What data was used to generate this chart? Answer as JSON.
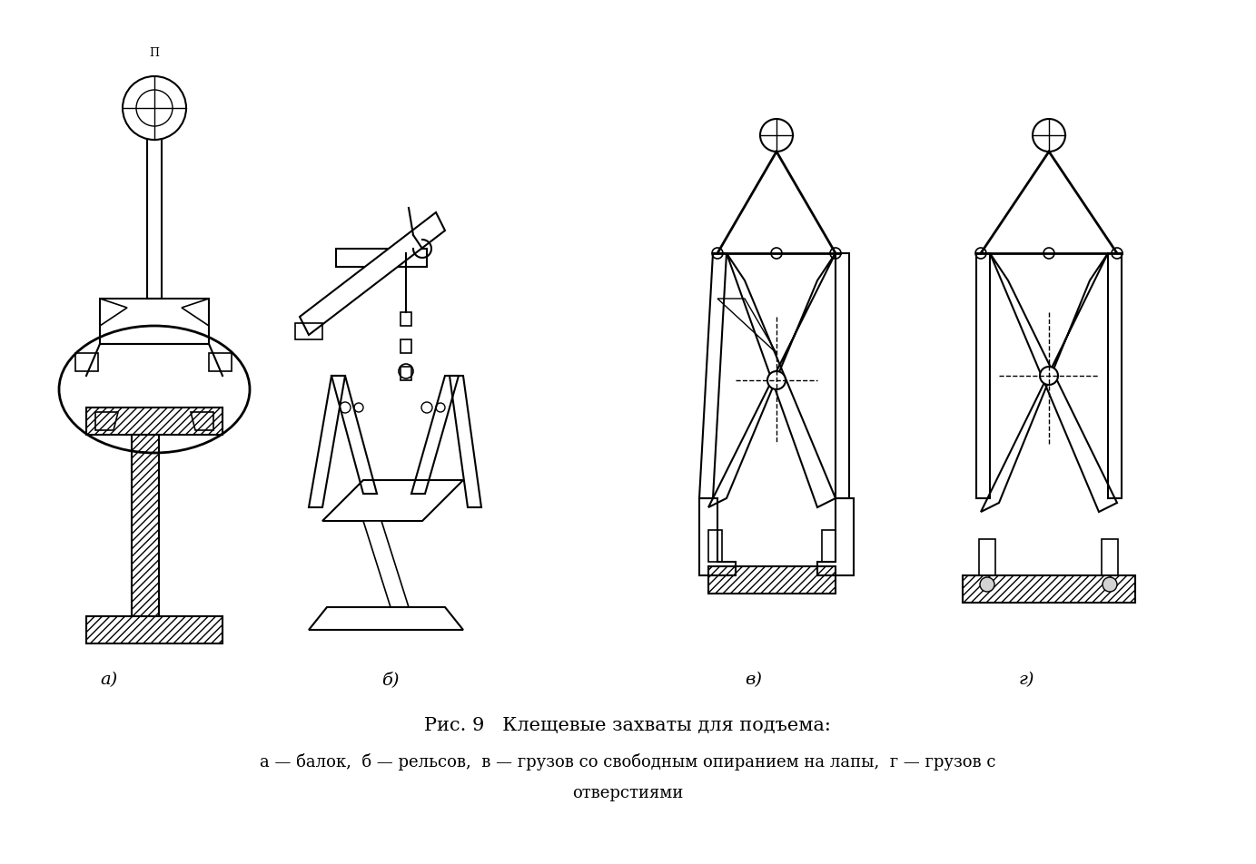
{
  "title_line1": "Рис. 9   Клещевые захваты для подъема:",
  "title_line2": "а — балок,  б — рельсов,  в — грузов со свободным опиранием на лапы,  г — грузов с",
  "title_line3": "отверстиями",
  "labels": [
    "а)",
    "б)",
    "в)",
    "г)"
  ],
  "bg_color": "#ffffff",
  "line_color": "#000000",
  "hatch_color": "#000000",
  "title_fontsize": 15,
  "label_fontsize": 14,
  "fig_width": 13.83,
  "fig_height": 9.53
}
